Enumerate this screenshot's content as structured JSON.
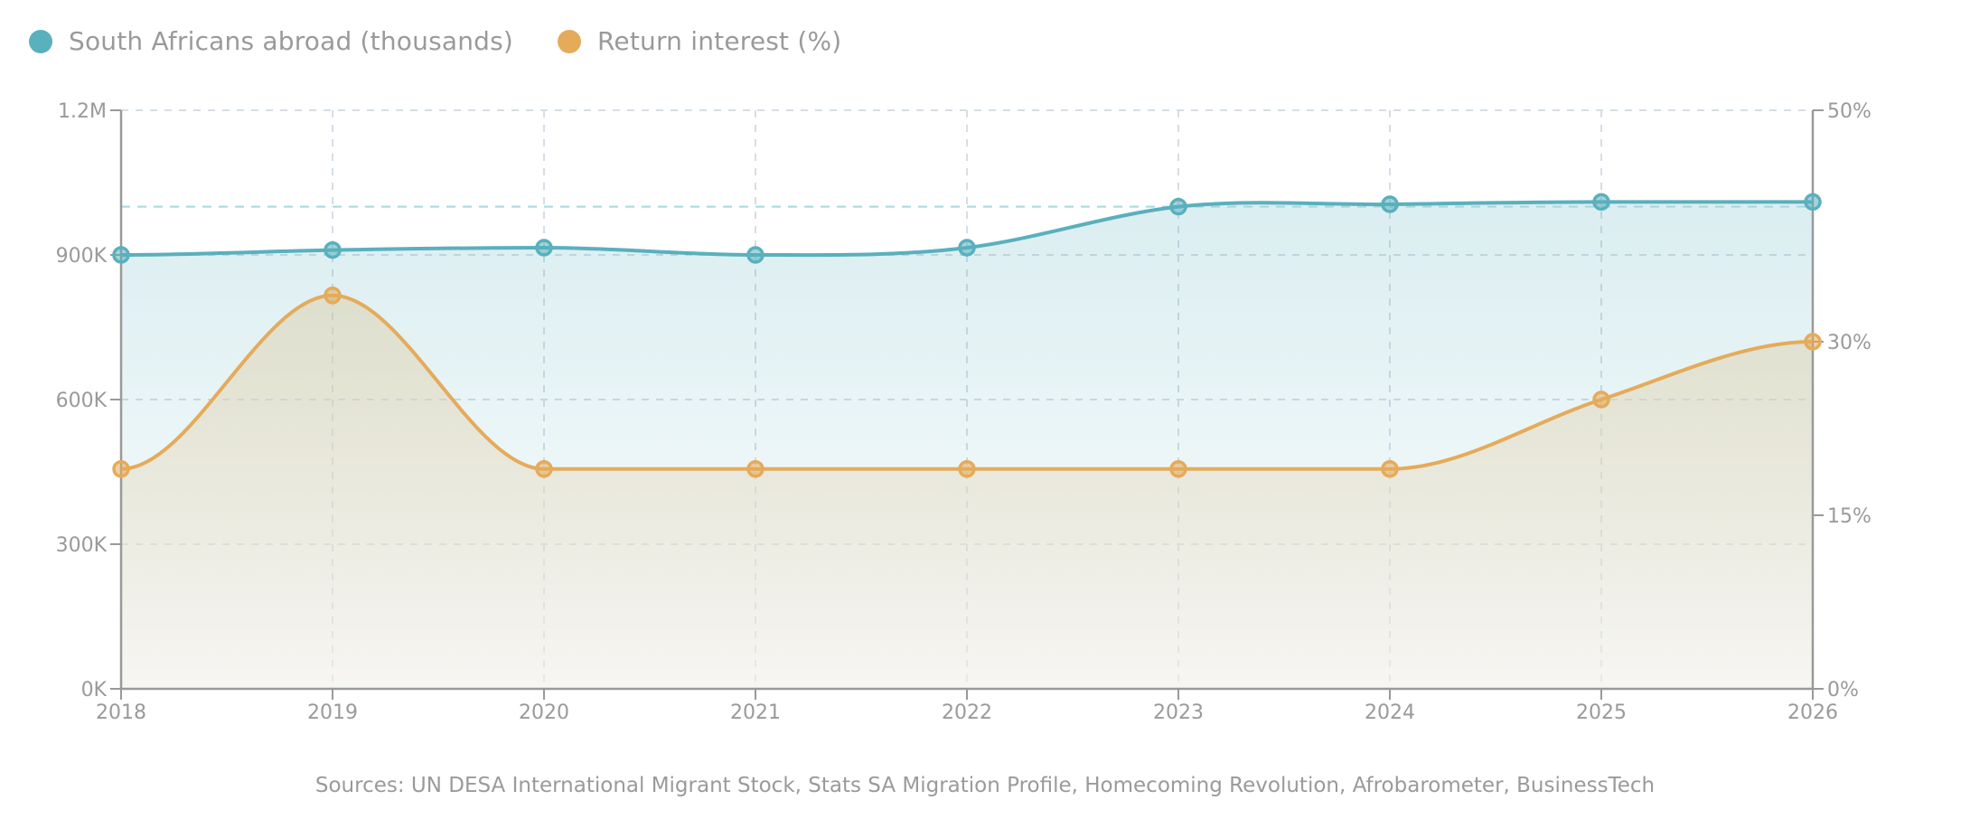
{
  "legend": {
    "items": [
      {
        "label": "South Africans abroad (thousands)",
        "color": "#5ab0bd"
      },
      {
        "label": "Return interest (%)",
        "color": "#e5ab5a"
      }
    ]
  },
  "footer": {
    "sources": "Sources: UN DESA International Migrant Stock, Stats SA Migration Profile, Homecoming Revolution, Afrobarometer, BusinessTech"
  },
  "colors": {
    "abroad": "#5ab0bd",
    "return": "#e5ab5a",
    "axis": "#999999",
    "grid": "#d6dde6",
    "reference": "#a9d6dc",
    "text": "#9a9a9a"
  },
  "chart_data": {
    "type": "line",
    "title": "",
    "xlabel": "",
    "ylabel": "",
    "x": [
      "2018",
      "2019",
      "2020",
      "2021",
      "2022",
      "2023",
      "2024",
      "2025",
      "2026"
    ],
    "series": [
      {
        "name": "South Africans abroad (thousands)",
        "axis": "left",
        "values": [
          900,
          910,
          915,
          900,
          915,
          1000,
          1005,
          1010,
          1010
        ],
        "fill": "area",
        "color": "#5ab0bd"
      },
      {
        "name": "Return interest (%)",
        "axis": "right",
        "values": [
          19,
          34,
          19,
          19,
          19,
          19,
          19,
          25,
          30
        ],
        "fill": "area",
        "color": "#e5ab5a"
      }
    ],
    "left_axis": {
      "ylim": [
        0,
        1200
      ],
      "ticks": [
        0,
        300,
        600,
        900,
        1200
      ],
      "tick_labels": [
        "0K",
        "300K",
        "600K",
        "900K",
        "1.2M"
      ]
    },
    "right_axis": {
      "ylim": [
        0,
        50
      ],
      "ticks": [
        0,
        15,
        30,
        50
      ],
      "tick_labels": [
        "0%",
        "15%",
        "30%",
        "50%"
      ]
    },
    "reference_line": {
      "axis": "left",
      "value": 1000,
      "style": "dashed"
    },
    "grid": true,
    "legend_position": "top-left"
  }
}
